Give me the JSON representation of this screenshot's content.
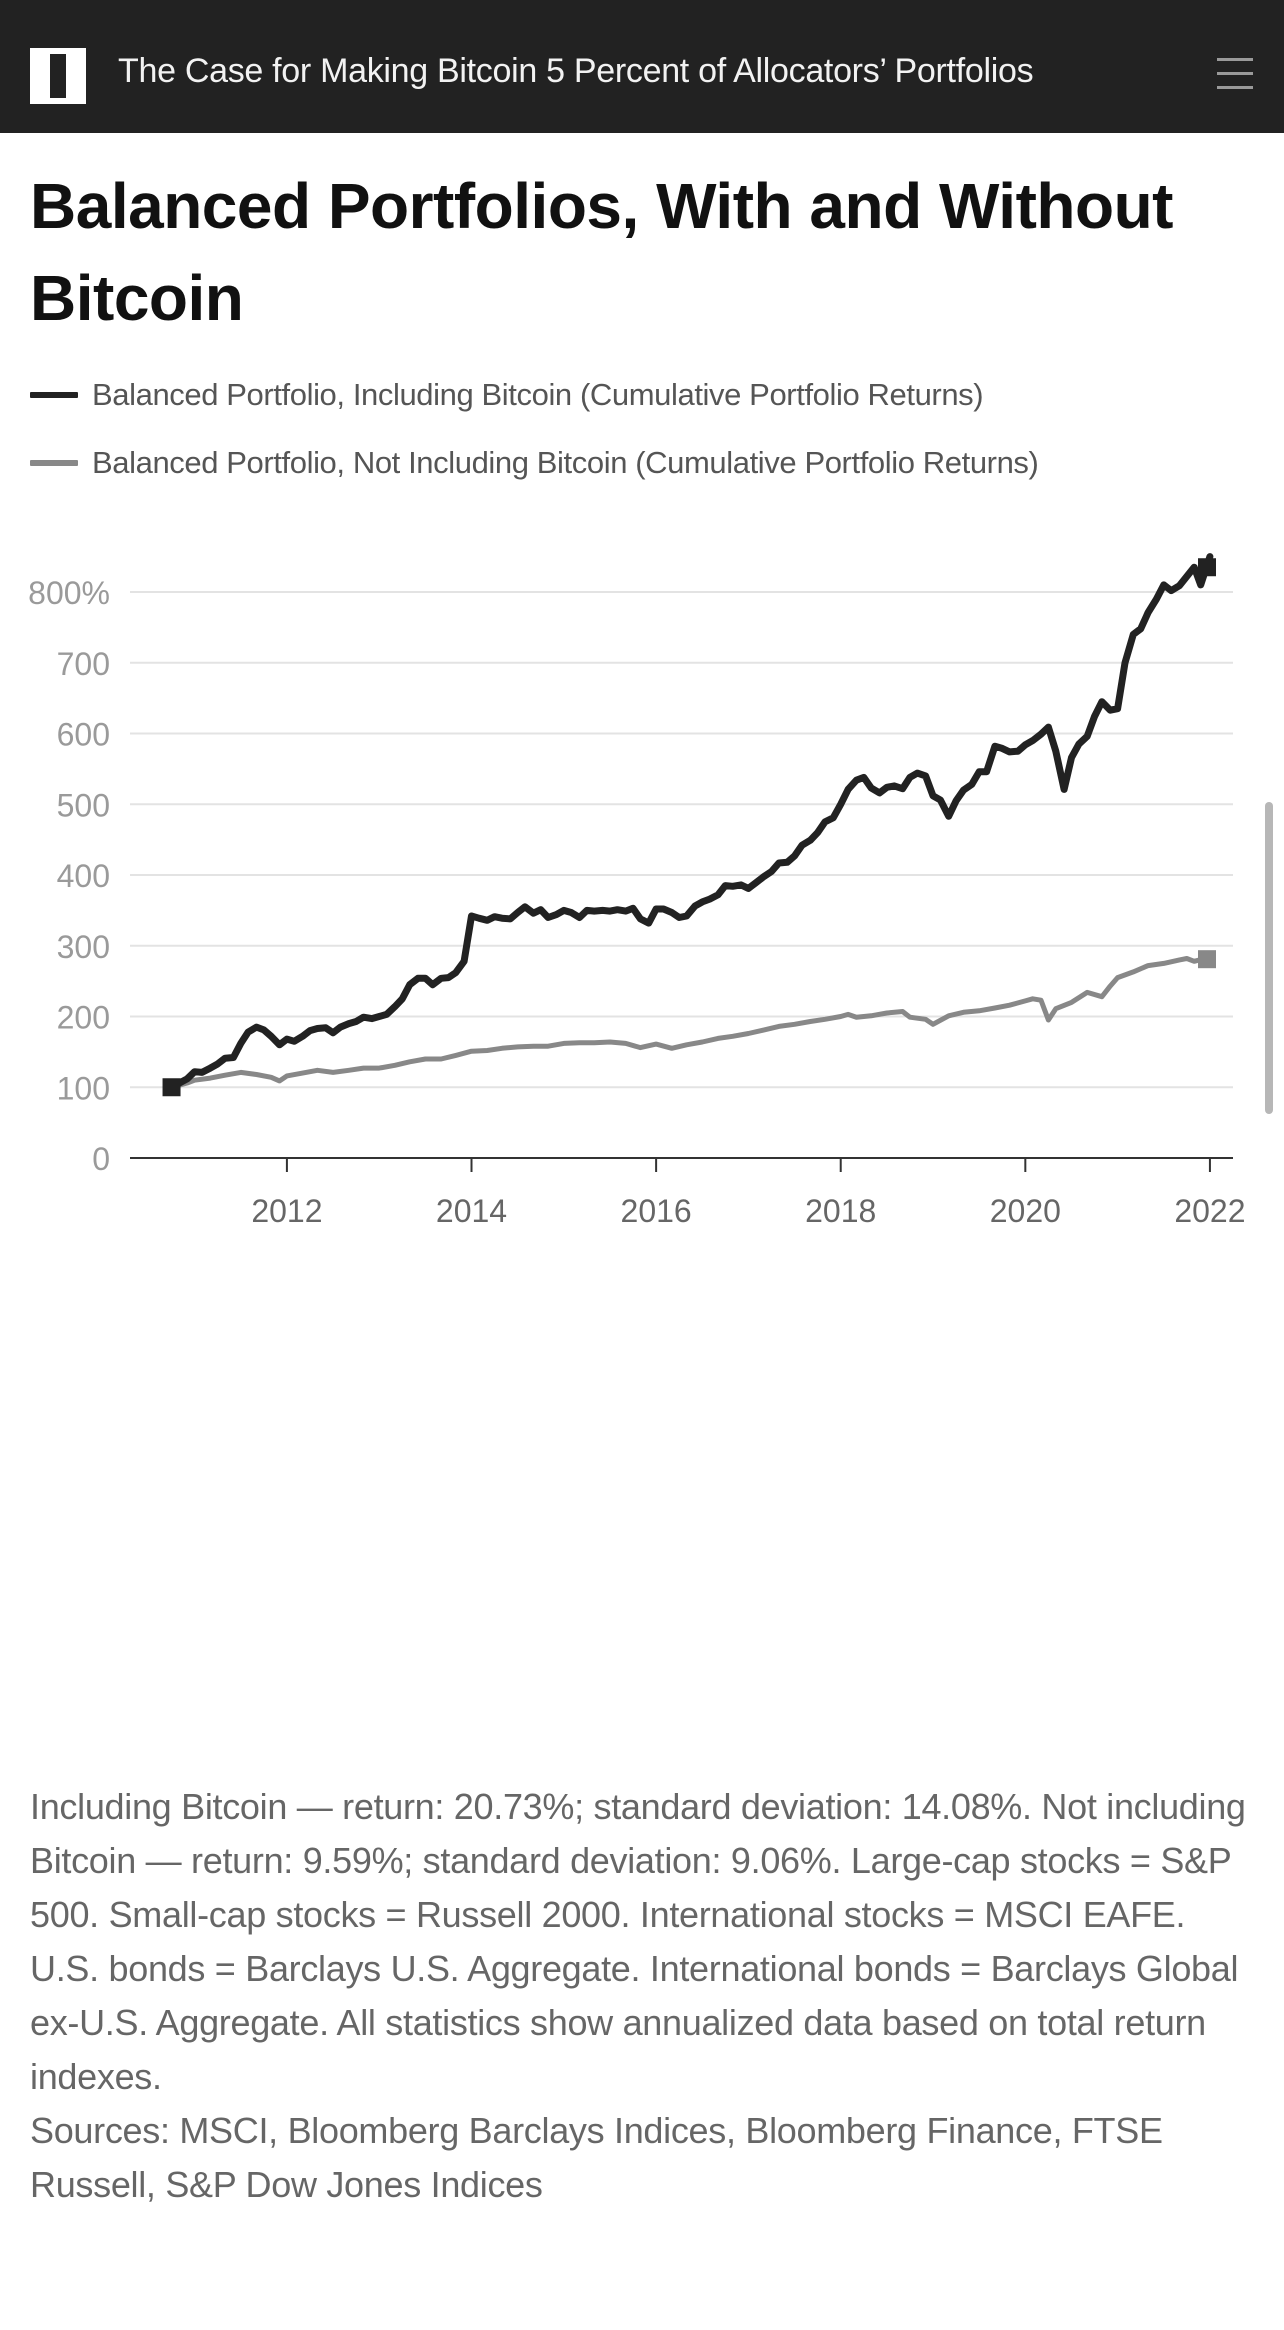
{
  "header": {
    "title": "The Case for Making Bitcoin 5 Percent of Allocators’ Portfolios",
    "logo_icon": "ii-logo-icon",
    "menu_icon": "hamburger-menu-icon"
  },
  "headline": "Balanced Portfolios, With and Without Bitcoin",
  "legend": [
    {
      "label": "Balanced Portfolio, Including Bitcoin (Cumulative Portfolio Returns)",
      "color": "#222222"
    },
    {
      "label": "Balanced Portfolio, Not Including Bitcoin (Cumulative Portfolio Returns)",
      "color": "#888888"
    }
  ],
  "chart_data": {
    "type": "line",
    "title": "Balanced Portfolios, With and Without Bitcoin",
    "ylim": [
      0,
      850
    ],
    "yticks": [
      0,
      100,
      200,
      300,
      400,
      500,
      600,
      700,
      800
    ],
    "ytick_labels": [
      "0",
      "100",
      "200",
      "300",
      "400",
      "500",
      "600",
      "700",
      "800%"
    ],
    "xlim": [
      2010.3,
      2022.25
    ],
    "xticks": [
      2012,
      2014,
      2016,
      2018,
      2020,
      2022
    ],
    "xtick_labels": [
      "2012",
      "2014",
      "2016",
      "2018",
      "2020",
      "2022"
    ],
    "grid": true,
    "series": [
      {
        "name": "Balanced Portfolio, Including Bitcoin (Cumulative Portfolio Returns)",
        "color": "#222222",
        "x": [
          2010.75,
          2010.92,
          2011.0,
          2011.08,
          2011.17,
          2011.25,
          2011.33,
          2011.42,
          2011.5,
          2011.58,
          2011.67,
          2011.75,
          2011.83,
          2011.92,
          2012.0,
          2012.08,
          2012.17,
          2012.25,
          2012.33,
          2012.42,
          2012.5,
          2012.58,
          2012.67,
          2012.75,
          2012.83,
          2012.92,
          2013.0,
          2013.08,
          2013.17,
          2013.25,
          2013.33,
          2013.42,
          2013.5,
          2013.58,
          2013.67,
          2013.75,
          2013.83,
          2013.92,
          2014.0,
          2014.08,
          2014.17,
          2014.25,
          2014.33,
          2014.42,
          2014.5,
          2014.58,
          2014.67,
          2014.75,
          2014.83,
          2014.92,
          2015.0,
          2015.08,
          2015.17,
          2015.25,
          2015.33,
          2015.42,
          2015.5,
          2015.58,
          2015.67,
          2015.75,
          2015.83,
          2015.92,
          2016.0,
          2016.08,
          2016.17,
          2016.25,
          2016.33,
          2016.42,
          2016.5,
          2016.58,
          2016.67,
          2016.75,
          2016.83,
          2016.92,
          2017.0,
          2017.08,
          2017.17,
          2017.25,
          2017.33,
          2017.42,
          2017.5,
          2017.58,
          2017.67,
          2017.75,
          2017.83,
          2017.92,
          2018.0,
          2018.08,
          2018.17,
          2018.25,
          2018.33,
          2018.42,
          2018.5,
          2018.58,
          2018.67,
          2018.75,
          2018.83,
          2018.92,
          2019.0,
          2019.08,
          2019.17,
          2019.25,
          2019.33,
          2019.42,
          2019.5,
          2019.58,
          2019.67,
          2019.75,
          2019.83,
          2019.92,
          2020.0,
          2020.08,
          2020.17,
          2020.25,
          2020.33,
          2020.42,
          2020.5,
          2020.58,
          2020.67,
          2020.75,
          2020.83,
          2020.92,
          2021.0,
          2021.08,
          2021.17,
          2021.25,
          2021.33,
          2021.42,
          2021.5,
          2021.58,
          2021.67,
          2021.75,
          2021.83,
          2021.9,
          2022.0
        ],
        "values": [
          100,
          112,
          122,
          121,
          127,
          133,
          141,
          142,
          162,
          178,
          185,
          181,
          172,
          160,
          168,
          165,
          172,
          180,
          183,
          184,
          177,
          185,
          190,
          193,
          199,
          197,
          200,
          203,
          214,
          225,
          245,
          254,
          254,
          245,
          254,
          255,
          262,
          278,
          342,
          339,
          336,
          341,
          339,
          338,
          347,
          355,
          346,
          351,
          340,
          344,
          350,
          347,
          340,
          350,
          349,
          350,
          349,
          351,
          349,
          353,
          338,
          332,
          352,
          352,
          347,
          340,
          342,
          356,
          362,
          366,
          372,
          385,
          384,
          386,
          381,
          389,
          398,
          405,
          417,
          418,
          427,
          442,
          449,
          460,
          475,
          481,
          500,
          521,
          534,
          538,
          523,
          516,
          524,
          526,
          522,
          538,
          544,
          540,
          512,
          506,
          483,
          505,
          520,
          528,
          546,
          546,
          582,
          579,
          574,
          575,
          584,
          590,
          599,
          609,
          575,
          521,
          566,
          585,
          596,
          624,
          645,
          633,
          635,
          700,
          740,
          748,
          771,
          790,
          810,
          802,
          809,
          822,
          835,
          810,
          850
        ]
      },
      {
        "name": "Balanced Portfolio, Not Including Bitcoin (Cumulative Portfolio Returns)",
        "color": "#888888",
        "x": [
          2010.75,
          2010.92,
          2011.0,
          2011.17,
          2011.33,
          2011.5,
          2011.67,
          2011.83,
          2011.92,
          2012.0,
          2012.17,
          2012.33,
          2012.5,
          2012.67,
          2012.83,
          2013.0,
          2013.17,
          2013.33,
          2013.5,
          2013.67,
          2013.83,
          2014.0,
          2014.17,
          2014.33,
          2014.5,
          2014.67,
          2014.83,
          2015.0,
          2015.17,
          2015.33,
          2015.5,
          2015.67,
          2015.83,
          2016.0,
          2016.17,
          2016.33,
          2016.5,
          2016.67,
          2016.83,
          2017.0,
          2017.17,
          2017.33,
          2017.5,
          2017.67,
          2017.83,
          2018.0,
          2018.08,
          2018.17,
          2018.33,
          2018.5,
          2018.67,
          2018.75,
          2018.92,
          2019.0,
          2019.17,
          2019.33,
          2019.5,
          2019.67,
          2019.83,
          2020.0,
          2020.08,
          2020.17,
          2020.25,
          2020.33,
          2020.5,
          2020.67,
          2020.83,
          2020.92,
          2021.0,
          2021.17,
          2021.33,
          2021.5,
          2021.67,
          2021.75,
          2021.83,
          2021.92,
          2022.0
        ],
        "values": [
          100,
          106,
          110,
          113,
          117,
          121,
          118,
          114,
          109,
          116,
          120,
          124,
          121,
          124,
          127,
          127,
          131,
          136,
          140,
          140,
          145,
          151,
          152,
          155,
          157,
          158,
          158,
          162,
          163,
          163,
          164,
          162,
          156,
          161,
          155,
          160,
          164,
          169,
          172,
          176,
          181,
          186,
          189,
          193,
          196,
          200,
          203,
          199,
          201,
          205,
          207,
          199,
          196,
          189,
          201,
          206,
          208,
          212,
          216,
          222,
          225,
          223,
          195,
          211,
          220,
          234,
          228,
          243,
          255,
          263,
          272,
          275,
          280,
          282,
          278,
          281,
          281
        ]
      }
    ]
  },
  "notes": [
    "Including Bitcoin — return: 20.73%; standard deviation: 14.08%. Not including Bitcoin — return: 9.59%; standard deviation: 9.06%. Large-cap stocks = S&P 500. Small-cap stocks = Russell 2000. International stocks = MSCI EAFE. U.S. bonds = Barclays U.S. Aggregate. International bonds = Barclays Global ex-U.S. Aggregate. All statistics show annualized data based on total return indexes.",
    "Sources: MSCI, Bloomberg Barclays Indices, Bloomberg Finance, FTSE Russell, S&P Dow Jones Indices"
  ]
}
